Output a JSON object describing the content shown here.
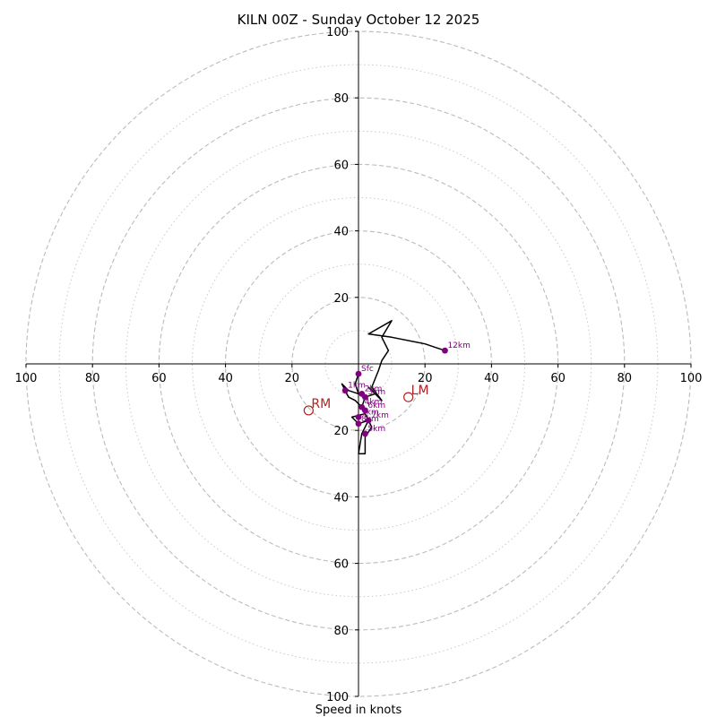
{
  "chart_data": {
    "type": "hodograph",
    "title": "KILN 00Z - Sunday October 12 2025",
    "xlabel": "Speed in knots",
    "units": "knots",
    "range": [
      -100,
      100
    ],
    "x_ticks": [
      {
        "value": -100,
        "label": "100"
      },
      {
        "value": -80,
        "label": "80"
      },
      {
        "value": -60,
        "label": "60"
      },
      {
        "value": -40,
        "label": "40"
      },
      {
        "value": -20,
        "label": "20"
      },
      {
        "value": 20,
        "label": "20"
      },
      {
        "value": 40,
        "label": "40"
      },
      {
        "value": 60,
        "label": "60"
      },
      {
        "value": 80,
        "label": "80"
      },
      {
        "value": 100,
        "label": "100"
      }
    ],
    "y_ticks": [
      {
        "value": 100,
        "label": "100"
      },
      {
        "value": 80,
        "label": "80"
      },
      {
        "value": 60,
        "label": "60"
      },
      {
        "value": 40,
        "label": "40"
      },
      {
        "value": 20,
        "label": "20"
      },
      {
        "value": -20,
        "label": "20"
      },
      {
        "value": -40,
        "label": "40"
      },
      {
        "value": -60,
        "label": "60"
      },
      {
        "value": -80,
        "label": "80"
      },
      {
        "value": -100,
        "label": "100"
      }
    ],
    "rings_major": [
      20,
      40,
      60,
      80,
      100
    ],
    "rings_minor": [
      10,
      30,
      50,
      70,
      90
    ],
    "trace": [
      [
        0,
        -3
      ],
      [
        -1,
        -6
      ],
      [
        0,
        -9
      ],
      [
        -3,
        -8
      ],
      [
        -5,
        -6
      ],
      [
        -3,
        -10
      ],
      [
        -1,
        -11
      ],
      [
        1,
        -13
      ],
      [
        2,
        -15
      ],
      [
        -2,
        -16
      ],
      [
        0,
        -18
      ],
      [
        3,
        -17
      ],
      [
        1,
        -21
      ],
      [
        0,
        -27
      ],
      [
        2,
        -27
      ],
      [
        2,
        -22
      ],
      [
        4,
        -19
      ],
      [
        3,
        -17
      ],
      [
        1,
        -13
      ],
      [
        2,
        -10
      ],
      [
        5,
        -9
      ],
      [
        3,
        -7
      ],
      [
        7,
        -11
      ],
      [
        4,
        -7
      ],
      [
        6,
        -2
      ],
      [
        7,
        1
      ],
      [
        9,
        4
      ],
      [
        7,
        8
      ],
      [
        10,
        13
      ],
      [
        3,
        9
      ],
      [
        10,
        8
      ],
      [
        20,
        6
      ],
      [
        23,
        5
      ],
      [
        26,
        4
      ]
    ],
    "height_markers": [
      {
        "label": "Sfc",
        "u": 0,
        "v": -3
      },
      {
        "label": "1km",
        "u": -4,
        "v": -8
      },
      {
        "label": "2km",
        "u": 1,
        "v": -9
      },
      {
        "label": "3km",
        "u": 2,
        "v": -10
      },
      {
        "label": "4km",
        "u": 1,
        "v": -13
      },
      {
        "label": "6km",
        "u": 2,
        "v": -14
      },
      {
        "label": "5km",
        "u": 0,
        "v": -16
      },
      {
        "label": "7km",
        "u": 3,
        "v": -17
      },
      {
        "label": "8km",
        "u": 0,
        "v": -18
      },
      {
        "label": "5km",
        "u": 2,
        "v": -21
      },
      {
        "label": "12km",
        "u": 26,
        "v": 4
      }
    ],
    "storm_motion": [
      {
        "label": "RM",
        "u": -15,
        "v": -14
      },
      {
        "label": "LM",
        "u": 15,
        "v": -10
      }
    ],
    "colors": {
      "trace": "#000000",
      "marker": "#800080",
      "motion": "#b22222",
      "grid": "#bbbbbb",
      "axis": "#000000"
    }
  }
}
